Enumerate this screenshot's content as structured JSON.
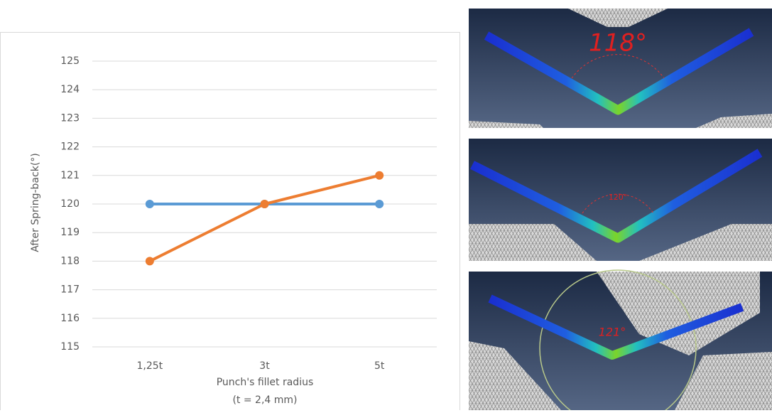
{
  "chart_data": {
    "type": "line",
    "ylabel": "After Spring-back(°)",
    "xlabel": [
      "Punch's fillet radius",
      "(t = 2,4 mm)"
    ],
    "categories": [
      "1,25t",
      "3t",
      "5t"
    ],
    "series": [
      {
        "color": "#5b9bd5",
        "values": [
          120,
          120,
          120
        ]
      },
      {
        "color": "#ed7d31",
        "values": [
          118,
          120,
          121
        ]
      }
    ],
    "ylim": [
      115,
      125
    ],
    "yticks": [
      115,
      116,
      117,
      118,
      119,
      120,
      121,
      122,
      123,
      124,
      125
    ],
    "grid": true
  },
  "images": [
    {
      "annotation": "118°"
    },
    {
      "annotation": "120°"
    },
    {
      "annotation": "121°"
    }
  ]
}
